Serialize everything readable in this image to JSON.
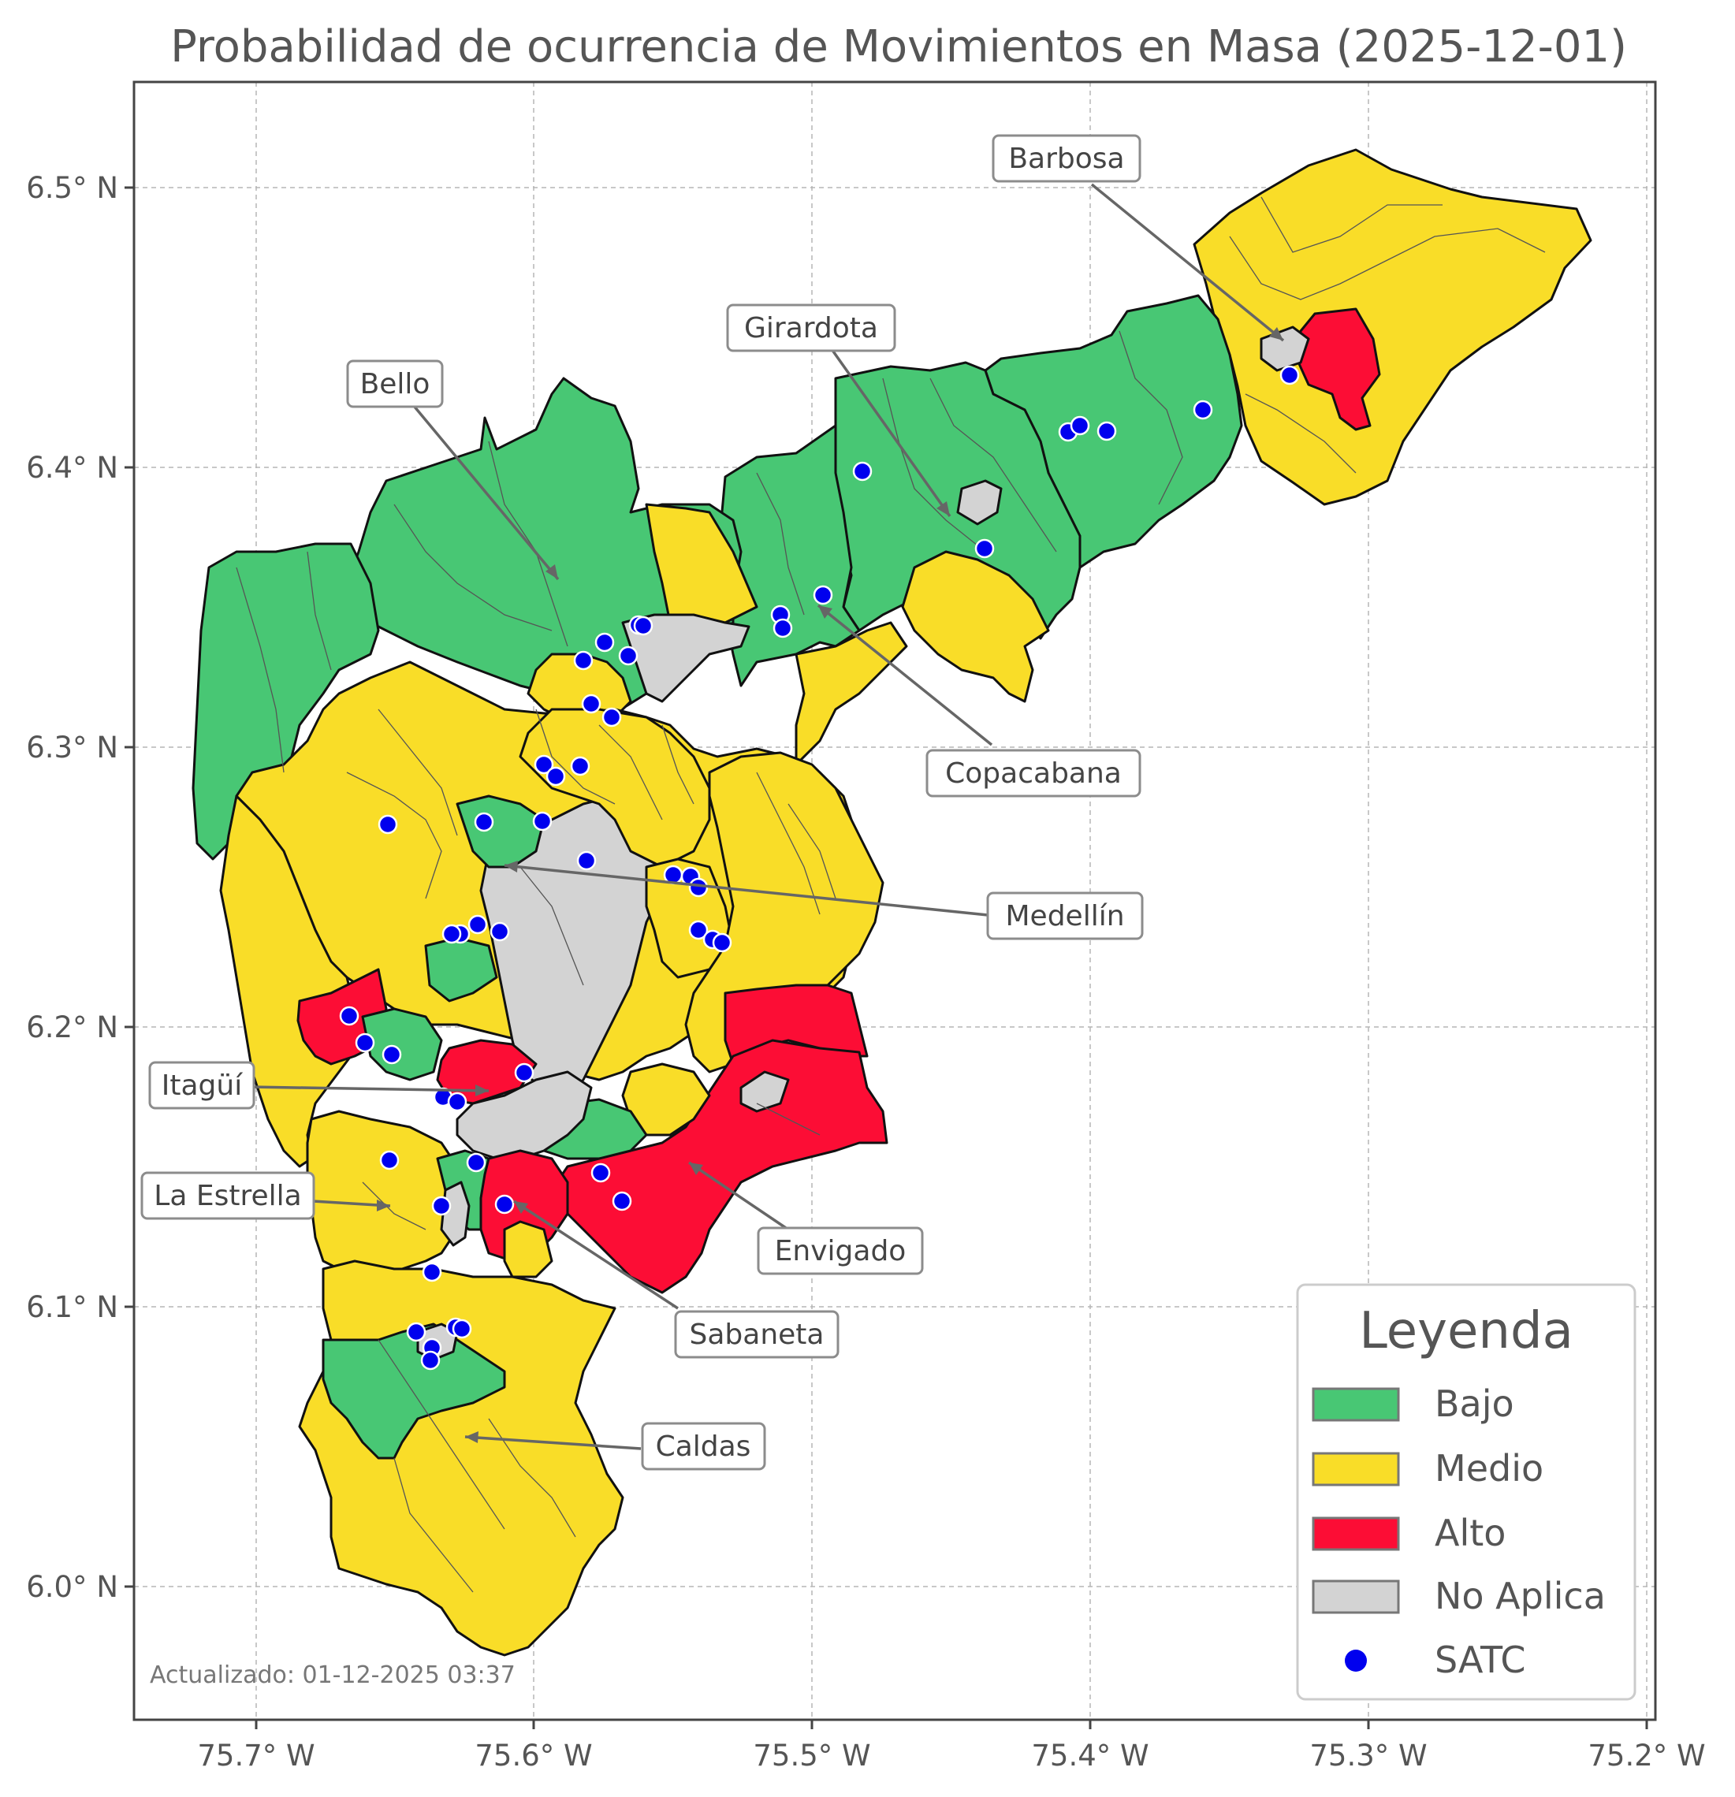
{
  "title": "Probabilidad de ocurrencia de Movimientos en Masa (2025-12-01)",
  "axes": {
    "x_ticks": [
      "75.7° W",
      "75.6° W",
      "75.5° W",
      "75.4° W",
      "75.3° W",
      "75.2° W"
    ],
    "y_ticks": [
      "6.5° N",
      "6.4° N",
      "6.3° N",
      "6.2° N",
      "6.1° N",
      "6.0° N"
    ],
    "grid": true
  },
  "colors": {
    "bajo": "#48c774",
    "medio": "#f9dd28",
    "alto": "#fc0d35",
    "no_aplica": "#d3d3d3",
    "satc": "#0000ee"
  },
  "municipalities": [
    {
      "label": "Barbosa"
    },
    {
      "label": "Girardota"
    },
    {
      "label": "Bello"
    },
    {
      "label": "Copacabana"
    },
    {
      "label": "Medellín"
    },
    {
      "label": "Itagüí"
    },
    {
      "label": "La Estrella"
    },
    {
      "label": "Envigado"
    },
    {
      "label": "Sabaneta"
    },
    {
      "label": "Caldas"
    }
  ],
  "legend": {
    "title": "Leyenda",
    "items": [
      {
        "label": "Bajo",
        "color": "#48c774",
        "symbol": "patch"
      },
      {
        "label": "Medio",
        "color": "#f9dd28",
        "symbol": "patch"
      },
      {
        "label": "Alto",
        "color": "#fc0d35",
        "symbol": "patch"
      },
      {
        "label": "No Aplica",
        "color": "#d3d3d3",
        "symbol": "patch"
      },
      {
        "label": "SATC",
        "color": "#0000ee",
        "symbol": "dot"
      }
    ]
  },
  "updated": "Actualizado: 01-12-2025 03:37"
}
